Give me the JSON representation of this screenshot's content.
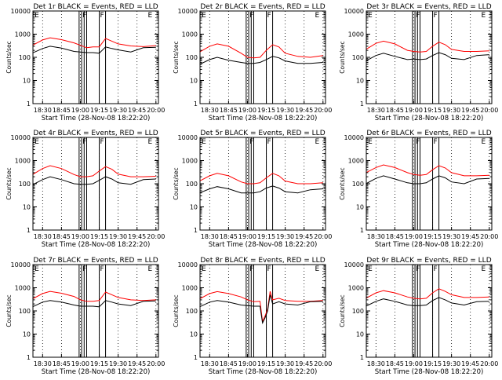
{
  "figure": {
    "background": "#ffffff",
    "axis_color": "#000000",
    "events_color": "#000000",
    "lld_color": "#ff0000"
  },
  "chart_data": [
    {
      "type": "line",
      "title": "Det 1r BLACK = Events, RED = LLD",
      "xlabel": "Start Time (28-Nov-08 18:22:20)",
      "ylabel": "Counts/sec",
      "x_ticks": [
        "18:30",
        "18:45",
        "19:00",
        "19:15",
        "19:30",
        "19:45",
        "20:00"
      ],
      "y_ticks": [
        "1",
        "10",
        "100",
        "1000",
        "10000"
      ],
      "ylim": [
        1,
        10000
      ],
      "y_scale": "log",
      "x": [
        "18:22",
        "18:30",
        "18:36",
        "18:45",
        "18:55",
        "19:00",
        "19:05",
        "19:10",
        "19:15",
        "19:20",
        "19:25",
        "19:30",
        "19:40",
        "19:50",
        "20:00"
      ],
      "series": [
        {
          "role": "LLD",
          "values": [
            330,
            560,
            700,
            580,
            420,
            330,
            260,
            280,
            280,
            650,
            500,
            380,
            310,
            290,
            320
          ]
        },
        {
          "role": "Events",
          "values": [
            155,
            240,
            300,
            250,
            180,
            170,
            160,
            160,
            150,
            280,
            240,
            210,
            170,
            260,
            270
          ]
        }
      ],
      "markers": [
        {
          "label": "E",
          "time": "18:23"
        },
        {
          "label": "F",
          "time": "19:01"
        },
        {
          "label": "F",
          "time": "19:15"
        },
        {
          "label": "E",
          "time": "19:53"
        }
      ],
      "region_lines": [
        "18:59",
        "19:01",
        "19:03",
        "19:05",
        "19:15",
        "19:20"
      ]
    },
    {
      "type": "line",
      "title": "Det 2r BLACK = Events, RED = LLD",
      "xlabel": "Start Time (28-Nov-08 18:22:20)",
      "ylabel": "Counts/sec",
      "x_ticks": [
        "18:30",
        "18:45",
        "19:00",
        "19:15",
        "19:30",
        "19:45",
        "20:00"
      ],
      "y_ticks": [
        "1",
        "10",
        "100",
        "1000",
        "10000"
      ],
      "ylim": [
        1,
        10000
      ],
      "y_scale": "log",
      "x": [
        "18:22",
        "18:30",
        "18:36",
        "18:45",
        "18:55",
        "19:00",
        "19:05",
        "19:10",
        "19:15",
        "19:20",
        "19:25",
        "19:30",
        "19:40",
        "19:50",
        "20:00"
      ],
      "series": [
        {
          "role": "LLD",
          "values": [
            170,
            300,
            380,
            300,
            150,
            100,
            95,
            100,
            200,
            350,
            280,
            150,
            110,
            100,
            120
          ]
        },
        {
          "role": "Events",
          "values": [
            50,
            80,
            100,
            75,
            60,
            55,
            55,
            60,
            80,
            110,
            95,
            70,
            55,
            55,
            60
          ]
        }
      ],
      "markers": [
        {
          "label": "E",
          "time": "18:23"
        },
        {
          "label": "F",
          "time": "19:01"
        },
        {
          "label": "F",
          "time": "19:15"
        },
        {
          "label": "E",
          "time": "19:53"
        }
      ],
      "region_lines": [
        "18:59",
        "19:01",
        "19:03",
        "19:05",
        "19:15",
        "19:20"
      ]
    },
    {
      "type": "line",
      "title": "Det 3r BLACK = Events, RED = LLD",
      "xlabel": "Start Time (28-Nov-08 18:22:20)",
      "ylabel": "Counts/sec",
      "x_ticks": [
        "18:30",
        "18:45",
        "19:00",
        "19:15",
        "19:30",
        "19:45",
        "20:00"
      ],
      "y_ticks": [
        "1",
        "10",
        "100",
        "1000",
        "10000"
      ],
      "ylim": [
        1,
        10000
      ],
      "y_scale": "log",
      "x": [
        "18:22",
        "18:30",
        "18:36",
        "18:45",
        "18:55",
        "19:00",
        "19:05",
        "19:10",
        "19:15",
        "19:20",
        "19:25",
        "19:30",
        "19:40",
        "19:50",
        "20:00"
      ],
      "series": [
        {
          "role": "LLD",
          "values": [
            220,
            400,
            500,
            380,
            200,
            180,
            170,
            180,
            300,
            450,
            350,
            220,
            180,
            180,
            190
          ]
        },
        {
          "role": "Events",
          "values": [
            70,
            120,
            150,
            110,
            80,
            85,
            80,
            85,
            120,
            160,
            130,
            90,
            80,
            120,
            130
          ]
        }
      ],
      "markers": [
        {
          "label": "E",
          "time": "18:23"
        },
        {
          "label": "F",
          "time": "19:01"
        },
        {
          "label": "F",
          "time": "19:15"
        },
        {
          "label": "E",
          "time": "19:53"
        }
      ],
      "region_lines": [
        "18:59",
        "19:01",
        "19:03",
        "19:05",
        "19:15",
        "19:20"
      ]
    },
    {
      "type": "line",
      "title": "Det 4r BLACK = Events, RED = LLD",
      "xlabel": "Start Time (28-Nov-08 18:22:20)",
      "ylabel": "Counts/sec",
      "x_ticks": [
        "18:30",
        "18:45",
        "19:00",
        "19:15",
        "19:30",
        "19:45",
        "20:00"
      ],
      "y_ticks": [
        "1",
        "10",
        "100",
        "1000",
        "10000"
      ],
      "ylim": [
        1,
        10000
      ],
      "y_scale": "log",
      "x": [
        "18:22",
        "18:30",
        "18:36",
        "18:45",
        "18:55",
        "19:00",
        "19:05",
        "19:10",
        "19:15",
        "19:20",
        "19:25",
        "19:30",
        "19:40",
        "19:50",
        "20:00"
      ],
      "series": [
        {
          "role": "LLD",
          "values": [
            250,
            450,
            600,
            450,
            250,
            200,
            200,
            220,
            350,
            550,
            420,
            260,
            200,
            200,
            210
          ]
        },
        {
          "role": "Events",
          "values": [
            90,
            150,
            200,
            150,
            100,
            95,
            95,
            100,
            140,
            200,
            160,
            110,
            95,
            150,
            160
          ]
        }
      ],
      "markers": [
        {
          "label": "E",
          "time": "18:23"
        },
        {
          "label": "F",
          "time": "19:01"
        },
        {
          "label": "F",
          "time": "19:15"
        },
        {
          "label": "E",
          "time": "19:53"
        }
      ],
      "region_lines": [
        "18:59",
        "19:01",
        "19:03",
        "19:05",
        "19:15",
        "19:20"
      ]
    },
    {
      "type": "line",
      "title": "Det 5r BLACK = Events, RED = LLD",
      "xlabel": "Start Time (28-Nov-08 18:22:20)",
      "ylabel": "Counts/sec",
      "x_ticks": [
        "18:30",
        "18:45",
        "19:00",
        "19:15",
        "19:30",
        "19:45",
        "20:00"
      ],
      "y_ticks": [
        "1",
        "10",
        "100",
        "1000",
        "10000"
      ],
      "ylim": [
        1,
        10000
      ],
      "y_scale": "log",
      "x": [
        "18:22",
        "18:30",
        "18:36",
        "18:45",
        "18:55",
        "19:00",
        "19:05",
        "19:10",
        "19:15",
        "19:20",
        "19:25",
        "19:30",
        "19:40",
        "19:50",
        "20:00"
      ],
      "series": [
        {
          "role": "LLD",
          "values": [
            130,
            220,
            280,
            220,
            120,
            100,
            100,
            110,
            180,
            280,
            220,
            130,
            100,
            100,
            110
          ]
        },
        {
          "role": "Events",
          "values": [
            40,
            60,
            75,
            60,
            40,
            40,
            40,
            45,
            65,
            80,
            65,
            45,
            40,
            55,
            60
          ]
        }
      ],
      "markers": [
        {
          "label": "E",
          "time": "18:23"
        },
        {
          "label": "F",
          "time": "19:01"
        },
        {
          "label": "F",
          "time": "19:15"
        },
        {
          "label": "E",
          "time": "19:53"
        }
      ],
      "region_lines": [
        "18:59",
        "19:01",
        "19:03",
        "19:05",
        "19:15",
        "19:20"
      ]
    },
    {
      "type": "line",
      "title": "Det 6r BLACK = Events, RED = LLD",
      "xlabel": "Start Time (28-Nov-08 18:22:20)",
      "ylabel": "Counts/sec",
      "x_ticks": [
        "18:30",
        "18:45",
        "19:00",
        "19:15",
        "19:30",
        "19:45",
        "20:00"
      ],
      "y_ticks": [
        "1",
        "10",
        "100",
        "1000",
        "10000"
      ],
      "ylim": [
        1,
        10000
      ],
      "y_scale": "log",
      "x": [
        "18:22",
        "18:30",
        "18:36",
        "18:45",
        "18:55",
        "19:00",
        "19:05",
        "19:10",
        "19:15",
        "19:20",
        "19:25",
        "19:30",
        "19:40",
        "19:50",
        "20:00"
      ],
      "series": [
        {
          "role": "LLD",
          "values": [
            300,
            500,
            650,
            500,
            300,
            250,
            230,
            250,
            400,
            600,
            480,
            300,
            220,
            220,
            230
          ]
        },
        {
          "role": "Events",
          "values": [
            100,
            170,
            220,
            160,
            110,
            100,
            100,
            110,
            160,
            220,
            180,
            120,
            100,
            160,
            170
          ]
        }
      ],
      "markers": [
        {
          "label": "E",
          "time": "18:23"
        },
        {
          "label": "F",
          "time": "19:01"
        },
        {
          "label": "F",
          "time": "19:15"
        },
        {
          "label": "E",
          "time": "19:53"
        }
      ],
      "region_lines": [
        "18:59",
        "19:01",
        "19:03",
        "19:05",
        "19:15",
        "19:20"
      ]
    },
    {
      "type": "line",
      "title": "Det 7r BLACK = Events, RED = LLD",
      "xlabel": "Start Time (28-Nov-08 18:22:20)",
      "ylabel": "Counts/sec",
      "x_ticks": [
        "18:30",
        "18:45",
        "19:00",
        "19:15",
        "19:30",
        "19:45",
        "20:00"
      ],
      "y_ticks": [
        "1",
        "10",
        "100",
        "1000",
        "10000"
      ],
      "ylim": [
        1,
        10000
      ],
      "y_scale": "log",
      "x": [
        "18:22",
        "18:30",
        "18:36",
        "18:45",
        "18:55",
        "19:00",
        "19:05",
        "19:10",
        "19:15",
        "19:20",
        "19:25",
        "19:30",
        "19:40",
        "19:50",
        "20:00"
      ],
      "series": [
        {
          "role": "LLD",
          "values": [
            330,
            560,
            700,
            580,
            420,
            300,
            260,
            260,
            280,
            650,
            500,
            380,
            300,
            280,
            300
          ]
        },
        {
          "role": "Events",
          "values": [
            150,
            240,
            280,
            240,
            180,
            160,
            160,
            160,
            150,
            280,
            240,
            200,
            170,
            260,
            270
          ]
        }
      ],
      "markers": [
        {
          "label": "E",
          "time": "18:23"
        },
        {
          "label": "F",
          "time": "19:01"
        },
        {
          "label": "F",
          "time": "19:15"
        },
        {
          "label": "E",
          "time": "19:53"
        }
      ],
      "region_lines": [
        "18:59",
        "19:01",
        "19:03",
        "19:05",
        "19:15",
        "19:20"
      ]
    },
    {
      "type": "line",
      "title": "Det 8r BLACK = Events, RED = LLD",
      "xlabel": "Start Time (28-Nov-08 18:22:20)",
      "ylabel": "Counts/sec",
      "x_ticks": [
        "18:30",
        "18:45",
        "19:00",
        "19:15",
        "19:30",
        "19:45",
        "20:00"
      ],
      "y_ticks": [
        "1",
        "10",
        "100",
        "1000",
        "10000"
      ],
      "ylim": [
        1,
        10000
      ],
      "y_scale": "log",
      "x": [
        "18:22",
        "18:30",
        "18:36",
        "18:45",
        "18:55",
        "19:00",
        "19:05",
        "19:10",
        "19:12",
        "19:14",
        "19:16",
        "19:18",
        "19:20",
        "19:25",
        "19:30",
        "19:40",
        "19:50",
        "20:00"
      ],
      "series": [
        {
          "role": "LLD",
          "values": [
            330,
            560,
            680,
            560,
            400,
            300,
            250,
            260,
            35,
            60,
            120,
            700,
            300,
            350,
            280,
            260,
            260,
            280
          ]
        },
        {
          "role": "Events",
          "values": [
            150,
            240,
            280,
            240,
            180,
            170,
            160,
            160,
            30,
            50,
            100,
            500,
            200,
            250,
            200,
            180,
            250,
            260
          ]
        }
      ],
      "markers": [
        {
          "label": "E",
          "time": "18:23"
        },
        {
          "label": "F",
          "time": "19:01"
        },
        {
          "label": "F",
          "time": "19:15"
        },
        {
          "label": "E",
          "time": "19:53"
        }
      ],
      "region_lines": [
        "18:59",
        "19:01",
        "19:03",
        "19:05",
        "19:15",
        "19:20"
      ]
    },
    {
      "type": "line",
      "title": "Det 9r BLACK = Events, RED = LLD",
      "xlabel": "Start Time (28-Nov-08 18:22:20)",
      "ylabel": "Counts/sec",
      "x_ticks": [
        "18:30",
        "18:45",
        "19:00",
        "19:15",
        "19:30",
        "19:45",
        "20:00"
      ],
      "y_ticks": [
        "1",
        "10",
        "100",
        "1000",
        "10000"
      ],
      "ylim": [
        1,
        10000
      ],
      "y_scale": "log",
      "x": [
        "18:22",
        "18:30",
        "18:36",
        "18:45",
        "18:55",
        "19:00",
        "19:05",
        "19:10",
        "19:15",
        "19:20",
        "19:25",
        "19:30",
        "19:40",
        "19:50",
        "20:00"
      ],
      "series": [
        {
          "role": "LLD",
          "values": [
            350,
            600,
            750,
            600,
            400,
            350,
            330,
            350,
            600,
            900,
            700,
            500,
            380,
            380,
            400
          ]
        },
        {
          "role": "Events",
          "values": [
            160,
            260,
            330,
            260,
            180,
            170,
            170,
            180,
            280,
            380,
            300,
            220,
            180,
            250,
            260
          ]
        }
      ],
      "markers": [
        {
          "label": "E",
          "time": "18:23"
        },
        {
          "label": "F",
          "time": "19:01"
        },
        {
          "label": "F",
          "time": "19:15"
        },
        {
          "label": "E",
          "time": "19:53"
        }
      ],
      "region_lines": [
        "18:59",
        "19:01",
        "19:03",
        "19:05",
        "19:15",
        "19:20"
      ]
    }
  ]
}
